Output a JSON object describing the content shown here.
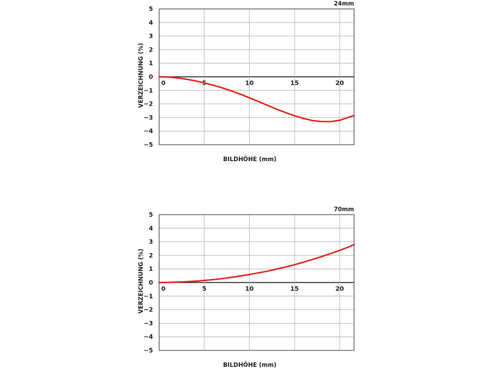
{
  "chart_data": [
    {
      "type": "line",
      "annotation": "24mm",
      "xlabel": "BILDHÖHE (mm)",
      "ylabel": "VERZEICHNUNG (%)",
      "xlim": [
        0,
        21.6
      ],
      "ylim": [
        -5,
        5
      ],
      "x_ticks": [
        0,
        5,
        10,
        15,
        20
      ],
      "y_ticks": [
        5,
        4,
        3,
        2,
        1,
        0,
        -1,
        -2,
        -3,
        -4,
        -5
      ],
      "grid": true,
      "series": [
        {
          "color": "#e52521",
          "x": [
            0,
            1,
            2,
            3,
            4,
            5,
            6,
            7,
            8,
            9,
            10,
            11,
            12,
            13,
            14,
            15,
            16,
            17,
            18,
            19,
            20,
            21,
            21.6
          ],
          "y": [
            0,
            -0.02,
            -0.08,
            -0.17,
            -0.3,
            -0.45,
            -0.62,
            -0.82,
            -1.04,
            -1.28,
            -1.55,
            -1.82,
            -2.1,
            -2.38,
            -2.63,
            -2.87,
            -3.07,
            -3.22,
            -3.3,
            -3.3,
            -3.2,
            -2.98,
            -2.85
          ]
        }
      ]
    },
    {
      "type": "line",
      "annotation": "70mm",
      "xlabel": "BILDHÖHE (mm)",
      "ylabel": "VERZEICHNUNG (%)",
      "xlim": [
        0,
        21.6
      ],
      "ylim": [
        -5,
        5
      ],
      "x_ticks": [
        0,
        5,
        10,
        15,
        20
      ],
      "y_ticks": [
        5,
        4,
        3,
        2,
        1,
        0,
        -1,
        -2,
        -3,
        -4,
        -5
      ],
      "grid": true,
      "series": [
        {
          "color": "#e52521",
          "x": [
            0,
            1,
            2,
            3,
            4,
            5,
            6,
            7,
            8,
            9,
            10,
            11,
            12,
            13,
            14,
            15,
            16,
            17,
            18,
            19,
            20,
            21,
            21.6
          ],
          "y": [
            0,
            0.01,
            0.03,
            0.06,
            0.1,
            0.15,
            0.21,
            0.29,
            0.38,
            0.48,
            0.59,
            0.71,
            0.84,
            0.99,
            1.14,
            1.31,
            1.5,
            1.7,
            1.91,
            2.13,
            2.37,
            2.62,
            2.8
          ]
        }
      ]
    }
  ]
}
